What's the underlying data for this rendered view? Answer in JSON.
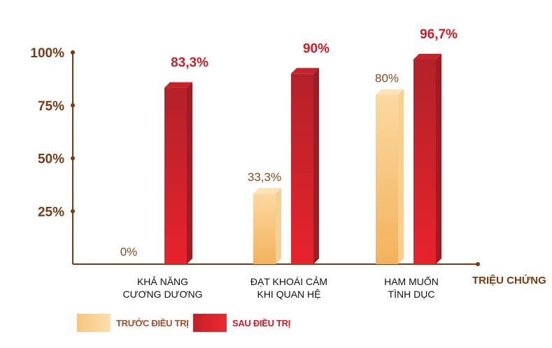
{
  "chart_data": {
    "type": "bar",
    "categories": [
      [
        "KHẢ NĂNG",
        "CƯƠNG DƯƠNG"
      ],
      [
        "ĐẠT KHOÁI CẢM",
        "KHI QUAN HỆ"
      ],
      [
        "HAM MUỐN",
        "TÌNH DỤC"
      ]
    ],
    "series": [
      {
        "name": "TRƯỚC ĐIỀU TRỊ",
        "values": [
          0,
          33.3,
          80
        ],
        "labels": [
          "0%",
          "33,3%",
          "80%"
        ],
        "color": "#f6c57c"
      },
      {
        "name": "SAU ĐIỀU TRỊ",
        "values": [
          83.3,
          90,
          96.7
        ],
        "labels": [
          "83,3%",
          "90%",
          "96,7%"
        ],
        "color": "#d9202a"
      }
    ],
    "y_ticks": [
      {
        "value": 25,
        "label": "25%"
      },
      {
        "value": 50,
        "label": "50%"
      },
      {
        "value": 75,
        "label": "75%"
      },
      {
        "value": 100,
        "label": "100%"
      }
    ],
    "ylim": [
      0,
      100
    ],
    "xlabel": "TRIỆU CHỨNG",
    "legend_position": "bottom-left",
    "colors": {
      "axis": "#7a3a14",
      "tick_label": "#7a3a14",
      "before_label": "#8a4a1c",
      "after_label": "#d01c24",
      "category_text": "#111111"
    }
  },
  "legend": [
    {
      "label": "TRƯỚC ĐIỀU TRỊ",
      "color": "#f6c57c",
      "text_color": "#a0522d"
    },
    {
      "label": "SAU ĐIỀU TRỊ",
      "color": "#d9202a",
      "text_color": "#d01c24"
    }
  ]
}
